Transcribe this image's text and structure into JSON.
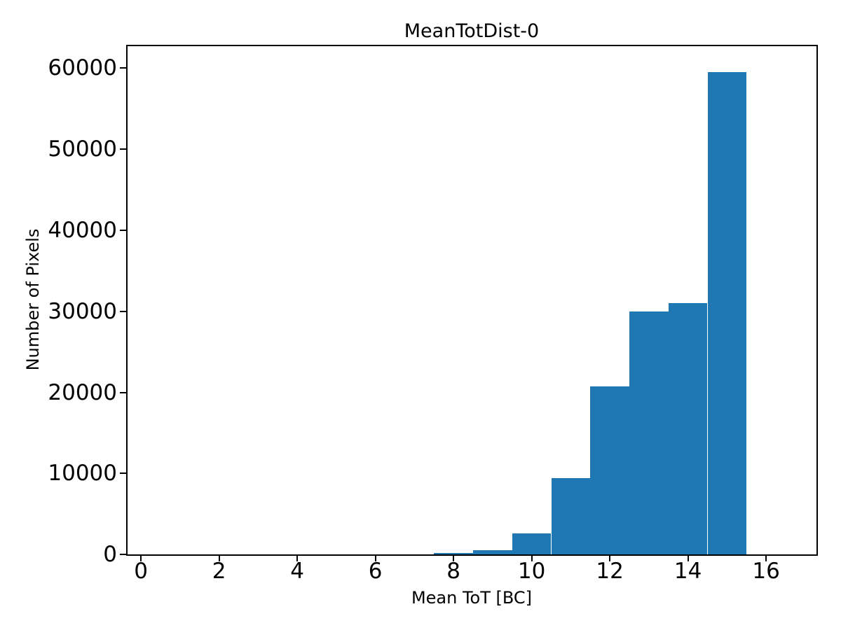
{
  "chart_data": {
    "type": "bar",
    "subtype": "histogram",
    "title": "MeanTotDist-0",
    "xlabel": "Mean ToT [BC]",
    "ylabel": "Number of Pixels",
    "bar_color": "#1f77b4",
    "axis_color": "#000000",
    "background_color": "#ffffff",
    "bin_width": 1,
    "bin_centers": [
      8,
      9,
      10,
      11,
      12,
      13,
      14,
      15
    ],
    "values": [
      170,
      520,
      2600,
      9400,
      20700,
      30000,
      31000,
      59500
    ],
    "x_ticks": [
      0,
      2,
      4,
      6,
      8,
      10,
      12,
      14,
      16
    ],
    "y_ticks": [
      0,
      10000,
      20000,
      30000,
      40000,
      50000,
      60000
    ],
    "xlim": [
      -0.36,
      17.29
    ],
    "ylim": [
      0,
      62800
    ],
    "grid": false,
    "legend": null
  }
}
